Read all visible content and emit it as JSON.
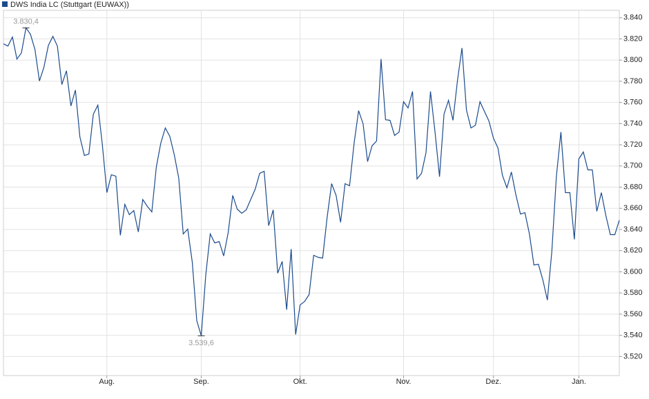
{
  "chart_data": {
    "type": "line",
    "categories": [
      null,
      null,
      null,
      null,
      null,
      null,
      null,
      null,
      null,
      null,
      null,
      null,
      null,
      null,
      null,
      null,
      null,
      null,
      null,
      null,
      null,
      null,
      null,
      "Aug.",
      null,
      null,
      null,
      null,
      null,
      null,
      null,
      null,
      null,
      null,
      null,
      null,
      null,
      null,
      null,
      null,
      null,
      null,
      null,
      null,
      "Sep.",
      null,
      null,
      null,
      null,
      null,
      null,
      null,
      null,
      null,
      null,
      null,
      null,
      null,
      null,
      null,
      null,
      null,
      null,
      null,
      null,
      null,
      "Okt.",
      null,
      null,
      null,
      null,
      null,
      null,
      null,
      null,
      null,
      null,
      null,
      null,
      null,
      null,
      null,
      null,
      null,
      null,
      null,
      null,
      null,
      null,
      "Nov.",
      null,
      null,
      null,
      null,
      null,
      null,
      null,
      null,
      null,
      null,
      null,
      null,
      null,
      null,
      null,
      null,
      null,
      null,
      null,
      "Dez.",
      null,
      null,
      null,
      null,
      null,
      null,
      null,
      null,
      null,
      null,
      null,
      null,
      null,
      null,
      null,
      null,
      null,
      null,
      "Jan.",
      null,
      null,
      null,
      null,
      null,
      null,
      null,
      null,
      null
    ],
    "series": [
      {
        "name": "DWS India LC (Stuttgart (EUWAX))",
        "color": "#1a4a8c",
        "values": [
          3815.3,
          3813.3,
          3821.8,
          3801.0,
          3806.8,
          3830.4,
          3824.4,
          3810.1,
          3780.2,
          3793.2,
          3814.0,
          3822.4,
          3813.3,
          3776.9,
          3789.9,
          3756.7,
          3771.7,
          3727.5,
          3709.9,
          3711.2,
          3748.9,
          3757.4,
          3720.3,
          3674.8,
          3691.7,
          3690.4,
          3634.5,
          3663.7,
          3654.0,
          3657.9,
          3637.7,
          3668.3,
          3661.8,
          3656.6,
          3698.9,
          3721.6,
          3735.9,
          3728.1,
          3710.6,
          3688.5,
          3635.8,
          3640.3,
          3609.1,
          3553.8,
          3539.6,
          3596.8,
          3635.8,
          3627.3,
          3628.6,
          3615.0,
          3637.1,
          3672.2,
          3659.2,
          3655.3,
          3658.5,
          3668.3,
          3678.1,
          3693.0,
          3695.0,
          3643.6,
          3658.5,
          3598.7,
          3609.8,
          3564.2,
          3621.5,
          3540.8,
          3568.8,
          3572.0,
          3578.5,
          3615.6,
          3613.7,
          3613.0,
          3651.4,
          3683.3,
          3672.2,
          3646.8,
          3683.3,
          3681.3,
          3721.6,
          3752.2,
          3739.8,
          3704.1,
          3719.0,
          3723.6,
          3801.0,
          3743.7,
          3743.1,
          3728.8,
          3732.0,
          3760.7,
          3754.8,
          3770.4,
          3687.8,
          3693.0,
          3712.5,
          3770.4,
          3732.0,
          3689.8,
          3748.9,
          3762.0,
          3743.1,
          3780.8,
          3811.4,
          3752.8,
          3735.9,
          3738.5,
          3760.7,
          3751.5,
          3742.4,
          3726.2,
          3717.1,
          3691.1,
          3679.4,
          3694.3,
          3672.8,
          3654.6,
          3655.9,
          3635.8,
          3606.5,
          3607.2,
          3592.2,
          3573.3,
          3619.5,
          3689.8,
          3732.0,
          3674.8,
          3674.8,
          3630.6,
          3706.7,
          3713.2,
          3696.3,
          3696.3,
          3657.2,
          3674.8,
          3653.3,
          3635.1,
          3635.1,
          3648.8
        ],
        "value_labels": [
          null,
          null,
          null,
          null,
          null,
          "3.830,4",
          null,
          null,
          null,
          null,
          null,
          null,
          null,
          null,
          null,
          null,
          null,
          null,
          null,
          null,
          null,
          null,
          null,
          null,
          null,
          null,
          null,
          null,
          null,
          null,
          null,
          null,
          null,
          null,
          null,
          null,
          null,
          null,
          null,
          null,
          null,
          null,
          null,
          null,
          "3.539,6",
          null,
          null,
          null,
          null,
          null,
          null,
          null,
          null,
          null,
          null,
          null,
          null,
          null,
          null,
          null,
          null,
          null,
          null,
          null,
          null,
          null,
          null,
          null,
          null,
          null,
          null,
          null,
          null,
          null,
          null,
          null,
          null,
          null,
          null,
          null,
          null,
          null,
          null,
          null,
          null,
          null,
          null,
          null,
          null,
          null,
          null,
          null,
          null,
          null,
          null,
          null,
          null,
          null,
          null,
          null,
          null,
          null,
          null,
          null,
          null,
          null,
          null,
          null,
          null,
          null,
          null,
          null,
          null,
          null,
          null,
          null,
          null,
          null,
          null,
          null,
          null,
          null,
          null,
          null,
          null,
          null,
          null,
          null,
          null,
          null,
          null,
          null,
          null,
          null,
          null,
          null,
          null,
          null
        ]
      }
    ],
    "ylim": [
      3502,
      3847
    ],
    "yticks": [
      {
        "value": 3520,
        "label": "3.520"
      },
      {
        "value": 3540,
        "label": "3.540"
      },
      {
        "value": 3560,
        "label": "3.560"
      },
      {
        "value": 3580,
        "label": "3.580"
      },
      {
        "value": 3600,
        "label": "3.600"
      },
      {
        "value": 3620,
        "label": "3.620"
      },
      {
        "value": 3640,
        "label": "3.640"
      },
      {
        "value": 3660,
        "label": "3.660"
      },
      {
        "value": 3680,
        "label": "3.680"
      },
      {
        "value": 3700,
        "label": "3.700"
      },
      {
        "value": 3720,
        "label": "3.720"
      },
      {
        "value": 3740,
        "label": "3.740"
      },
      {
        "value": 3760,
        "label": "3.760"
      },
      {
        "value": 3780,
        "label": "3.780"
      },
      {
        "value": 3800,
        "label": "3.800"
      },
      {
        "value": 3820,
        "label": "3.820"
      },
      {
        "value": 3840,
        "label": "3.840"
      }
    ],
    "grid": true,
    "legend": "top-left"
  }
}
